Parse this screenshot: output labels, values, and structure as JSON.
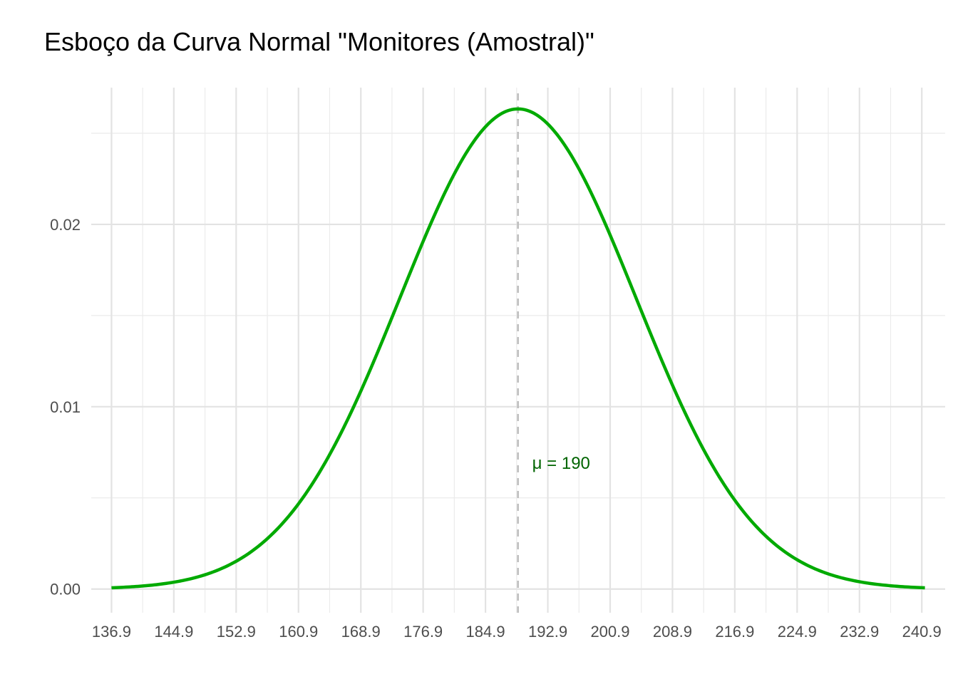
{
  "chart_data": {
    "type": "line",
    "title": "Esboço da Curva Normal \"Monitores (Amostral)\"",
    "xlabel": "",
    "ylabel": "",
    "distribution": {
      "mean": 189.07,
      "sd": 15.15
    },
    "x_range": [
      136.9,
      241.3
    ],
    "xlim": [
      134.3,
      243.9
    ],
    "ylim": [
      -0.0013,
      0.0275
    ],
    "x_ticks": [
      136.9,
      144.9,
      152.9,
      160.9,
      168.9,
      176.9,
      184.9,
      192.9,
      200.9,
      208.9,
      216.9,
      224.9,
      232.9,
      240.9
    ],
    "x_tick_labels": [
      "136.9",
      "144.9",
      "152.9",
      "160.9",
      "168.9",
      "176.9",
      "184.9",
      "192.9",
      "200.9",
      "208.9",
      "216.9",
      "224.9",
      "232.9",
      "240.9"
    ],
    "y_ticks": [
      0.0,
      0.01,
      0.02
    ],
    "y_tick_labels": [
      "0.00",
      "0.01",
      "0.02"
    ],
    "y_minor_ticks": [
      0.005,
      0.015,
      0.025
    ],
    "grid": true,
    "legend": "none",
    "series": [
      {
        "color": "#00aa00"
      }
    ],
    "mean_line": {
      "x": 189.07,
      "color": "#bdbdbd",
      "style": "dashed"
    },
    "annotation": {
      "text": "μ = 190",
      "x": 190.9,
      "y": 0.0069,
      "color": "#006400"
    }
  }
}
